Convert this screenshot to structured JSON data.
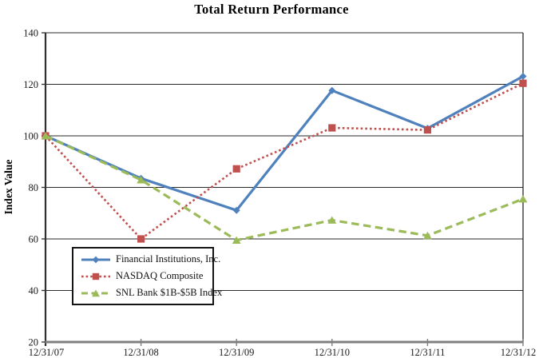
{
  "title": "Total Return Performance",
  "y_axis_label": "Index Value",
  "chart_data": {
    "type": "line",
    "title": "Total Return Performance",
    "xlabel": "",
    "ylabel": "Index Value",
    "categories": [
      "12/31/07",
      "12/31/08",
      "12/31/09",
      "12/31/10",
      "12/31/11",
      "12/31/12"
    ],
    "series": [
      {
        "name": "Financial Institutions, Inc.",
        "color": "#4F81BD",
        "line_style": "solid",
        "marker": "diamond",
        "values": [
          100,
          83.5,
          71.1,
          117.6,
          102.9,
          123.1
        ]
      },
      {
        "name": "NASDAQ Composite",
        "color": "#C0504D",
        "line_style": "dotted",
        "marker": "square",
        "values": [
          100,
          60.0,
          87.2,
          103.1,
          102.3,
          120.4
        ]
      },
      {
        "name": "SNL Bank $1B-$5B Index",
        "color": "#9BBB59",
        "line_style": "dashed",
        "marker": "triangle",
        "values": [
          100,
          82.9,
          59.5,
          67.3,
          61.3,
          75.5
        ]
      }
    ],
    "ylim": [
      20,
      140
    ],
    "yticks": [
      20,
      40,
      60,
      80,
      100,
      120,
      140
    ],
    "grid": true,
    "legend_position": "inside-bottom-left"
  },
  "colors": {
    "background": "#ffffff",
    "grid": "#2a2a2a",
    "axis": "#303030",
    "baseline": "#7f7f7f",
    "text": "#1a1a1a"
  }
}
